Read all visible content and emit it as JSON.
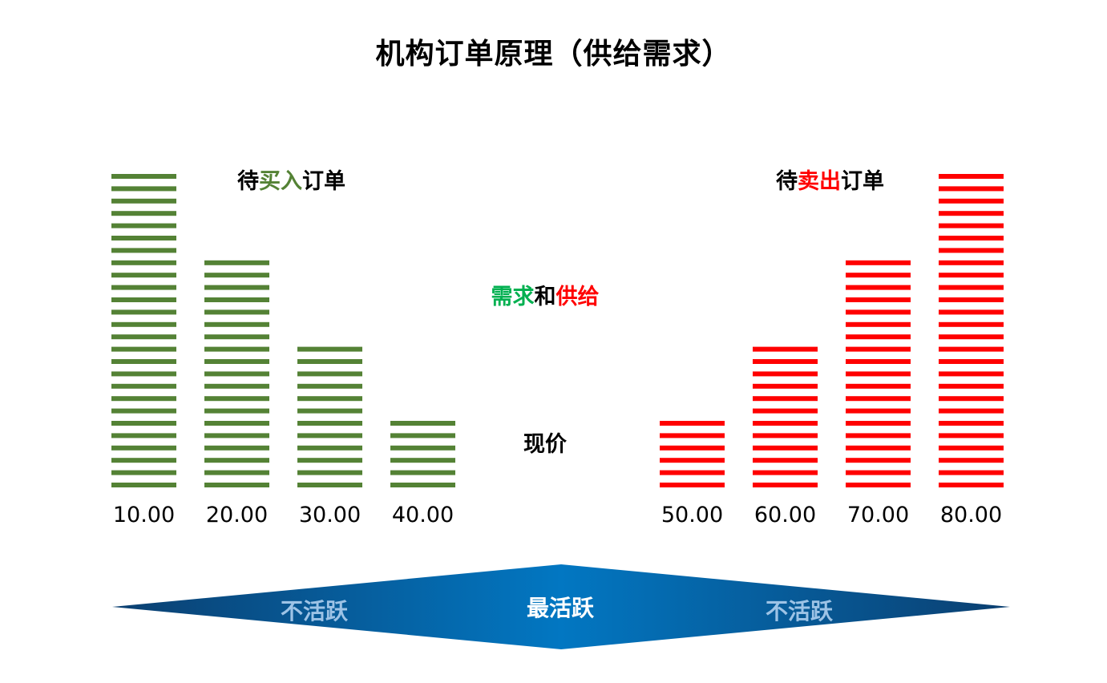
{
  "title": "机构订单原理（供给需求）",
  "buy_label": {
    "prefix": "待",
    "highlight": "买入",
    "suffix": "订单"
  },
  "sell_label": {
    "prefix": "待",
    "highlight": "卖出",
    "suffix": "订单"
  },
  "middle_label": {
    "demand": "需求",
    "and": "和",
    "supply": "供给"
  },
  "price_label": "现价",
  "colors": {
    "buy": "#548235",
    "sell": "#ff0000",
    "demand": "#00b050",
    "banner_dark": "#0b3f70",
    "banner_light": "#0277c2"
  },
  "activity": {
    "left": "不活跃",
    "middle": "最活跃",
    "right": "不活跃"
  },
  "chart_data": {
    "type": "bar",
    "categories": [
      "10.00",
      "20.00",
      "30.00",
      "40.00",
      "50.00",
      "60.00",
      "70.00",
      "80.00"
    ],
    "series": [
      {
        "name": "待买入订单",
        "values": [
          26,
          19,
          12,
          6,
          0,
          0,
          0,
          0
        ]
      },
      {
        "name": "待卖出订单",
        "values": [
          0,
          0,
          0,
          0,
          6,
          12,
          19,
          26
        ]
      }
    ]
  }
}
